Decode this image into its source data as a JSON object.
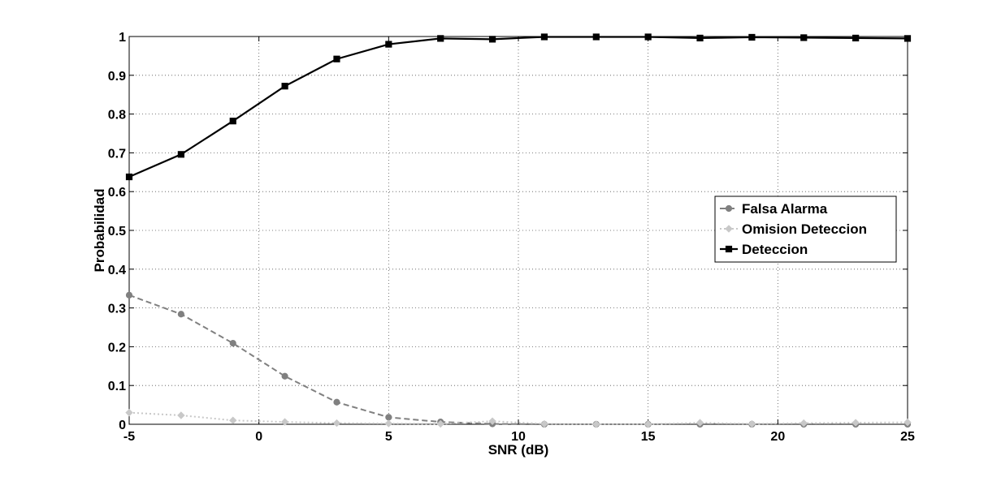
{
  "chart_data": {
    "type": "line",
    "title": "",
    "xlabel": "SNR (dB)",
    "ylabel": "Probabilidad",
    "xlim": [
      -5,
      25
    ],
    "ylim": [
      0,
      1
    ],
    "xticks": [
      -5,
      0,
      5,
      10,
      15,
      20,
      25
    ],
    "yticks": [
      0,
      0.1,
      0.2,
      0.3,
      0.4,
      0.5,
      0.6,
      0.7,
      0.8,
      0.9,
      1
    ],
    "xtick_labels": [
      "-5",
      "0",
      "5",
      "10",
      "15",
      "20",
      "25"
    ],
    "ytick_labels": [
      "0",
      "0.1",
      "0.2",
      "0.3",
      "0.4",
      "0.5",
      "0.6",
      "0.7",
      "0.8",
      "0.9",
      "1"
    ],
    "grid": true,
    "legend_position": "right",
    "x": [
      -5,
      -3,
      -1,
      1,
      3,
      5,
      7,
      9,
      11,
      13,
      15,
      17,
      19,
      21,
      23,
      25
    ],
    "series": [
      {
        "name": "Falsa Alarma",
        "color": "#808080",
        "line_style": "dashed",
        "marker": "circle",
        "values": [
          0.333,
          0.284,
          0.209,
          0.124,
          0.057,
          0.018,
          0.006,
          0.001,
          0.0,
          0.0,
          0.0,
          0.0,
          0.0,
          0.0,
          0.0,
          0.0
        ]
      },
      {
        "name": "Omision Deteccion",
        "color": "#c8c8c8",
        "line_style": "dotted",
        "marker": "diamond",
        "values": [
          0.03,
          0.023,
          0.01,
          0.006,
          0.003,
          0.002,
          0.001,
          0.008,
          0.001,
          0.0,
          0.0,
          0.004,
          0.001,
          0.003,
          0.004,
          0.005
        ]
      },
      {
        "name": "Deteccion",
        "color": "#000000",
        "line_style": "solid",
        "marker": "square",
        "values": [
          0.638,
          0.696,
          0.782,
          0.872,
          0.942,
          0.98,
          0.995,
          0.993,
          0.999,
          0.999,
          0.999,
          0.996,
          0.998,
          0.997,
          0.996,
          0.995
        ]
      }
    ]
  }
}
